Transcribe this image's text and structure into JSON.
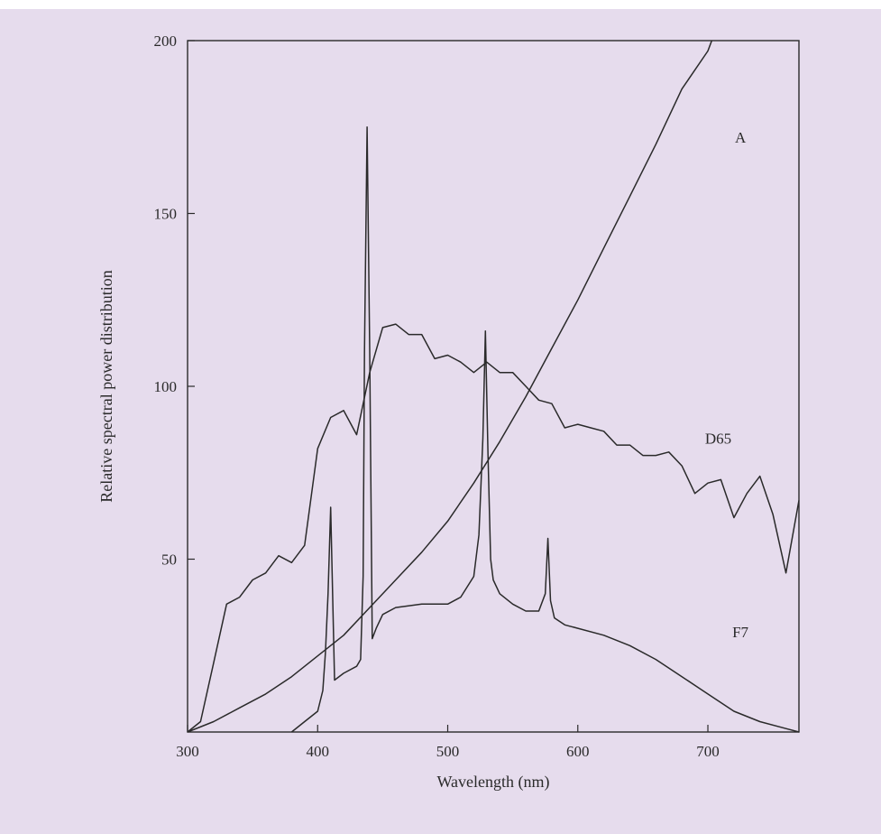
{
  "chart_data": {
    "type": "line",
    "title": "",
    "xlabel": "Wavelength (nm)",
    "ylabel": "Relative spectral power distribution",
    "xlim": [
      300,
      770
    ],
    "ylim": [
      0,
      200
    ],
    "x_ticks": [
      300,
      400,
      500,
      600,
      700
    ],
    "y_ticks": [
      50,
      100,
      150,
      200
    ],
    "grid": false,
    "series": [
      {
        "name": "A",
        "x": [
          300,
          320,
          340,
          360,
          380,
          400,
          420,
          440,
          460,
          480,
          500,
          520,
          540,
          560,
          580,
          600,
          620,
          640,
          660,
          680,
          700,
          703
        ],
        "values": [
          0,
          3,
          7,
          11,
          16,
          22,
          28,
          36,
          44,
          52,
          61,
          72,
          84,
          97,
          111,
          125,
          140,
          155,
          170,
          186,
          197,
          200
        ]
      },
      {
        "name": "D65",
        "x": [
          300,
          310,
          320,
          330,
          340,
          350,
          360,
          370,
          380,
          390,
          400,
          410,
          420,
          430,
          440,
          450,
          460,
          470,
          480,
          490,
          500,
          510,
          520,
          530,
          540,
          550,
          560,
          570,
          580,
          590,
          600,
          610,
          620,
          630,
          640,
          650,
          660,
          670,
          680,
          690,
          700,
          710,
          720,
          730,
          740,
          750,
          760,
          770
        ],
        "values": [
          0,
          3,
          20,
          37,
          39,
          44,
          46,
          51,
          49,
          54,
          82,
          91,
          93,
          86,
          104,
          117,
          118,
          115,
          115,
          108,
          109,
          107,
          104,
          107,
          104,
          104,
          100,
          96,
          95,
          88,
          89,
          88,
          87,
          83,
          83,
          80,
          80,
          81,
          77,
          69,
          72,
          73,
          62,
          69,
          74,
          63,
          46,
          67
        ]
      },
      {
        "name": "F7",
        "x": [
          380,
          390,
          400,
          404,
          406,
          408,
          410,
          413,
          420,
          430,
          433,
          435,
          436,
          438,
          440,
          442,
          445,
          450,
          460,
          480,
          500,
          510,
          520,
          524,
          527,
          529,
          531,
          533,
          535,
          540,
          550,
          560,
          570,
          575,
          577,
          579,
          582,
          590,
          600,
          620,
          640,
          660,
          680,
          700,
          720,
          740,
          760,
          770
        ],
        "values": [
          0,
          3,
          6,
          12,
          23,
          40,
          65,
          15,
          17,
          19,
          21,
          45,
          110,
          175,
          110,
          27,
          30,
          34,
          36,
          37,
          37,
          39,
          45,
          57,
          85,
          116,
          80,
          50,
          44,
          40,
          37,
          35,
          35,
          40,
          56,
          38,
          33,
          31,
          30,
          28,
          25,
          21,
          16,
          11,
          6,
          3,
          1,
          0
        ]
      }
    ],
    "annotations": [
      {
        "text": "A",
        "x": 725,
        "y": 172
      },
      {
        "text": "D65",
        "x": 708,
        "y": 85
      },
      {
        "text": "F7",
        "x": 725,
        "y": 29
      }
    ]
  }
}
